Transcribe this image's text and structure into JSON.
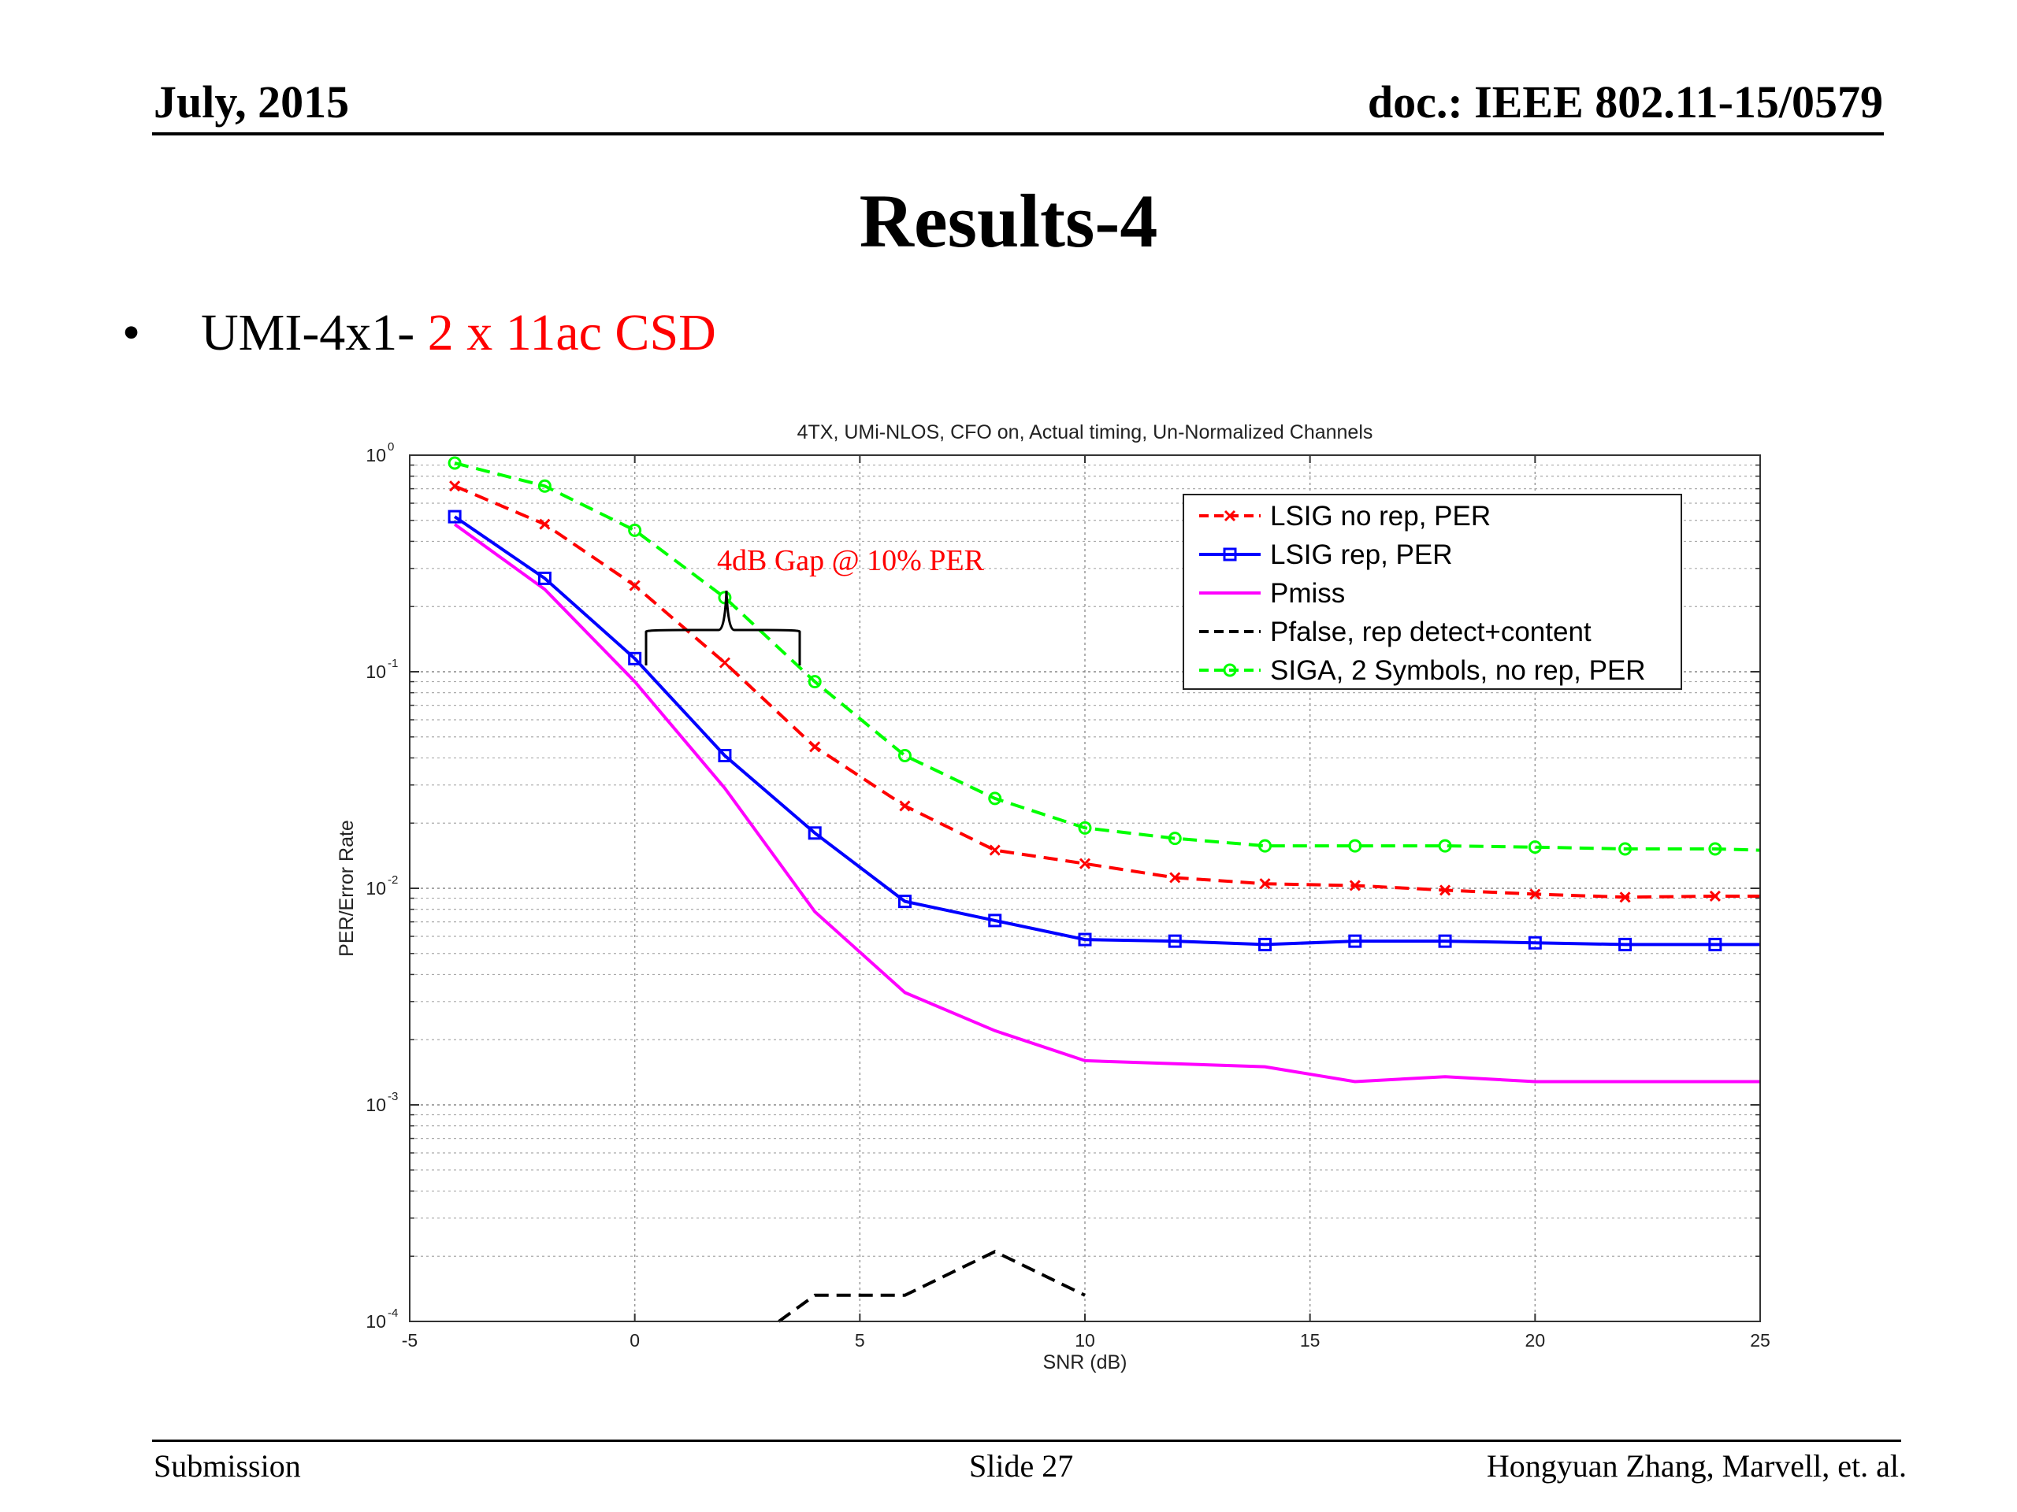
{
  "header": {
    "date": "July, 2015",
    "doc": "doc.: IEEE 802.11-15/0579"
  },
  "slide": {
    "title": "Results-4",
    "bullet": {
      "marker": "•",
      "text_black": "UMI-4x1- ",
      "text_red": "2 x 11ac CSD"
    }
  },
  "footer": {
    "left": "Submission",
    "center": "Slide 27",
    "right": "Hongyuan Zhang,  Marvell, et. al."
  },
  "chart_data": {
    "type": "line",
    "title": "4TX, UMi-NLOS, CFO on, Actual timing, Un-Normalized Channels",
    "xlabel": "SNR (dB)",
    "ylabel": "PER/Error Rate",
    "xlim": [
      -5,
      25
    ],
    "ylim": [
      0.0001,
      1
    ],
    "y_scale": "log",
    "grid": true,
    "legend_position": "top-right",
    "x_ticks": [
      -5,
      0,
      5,
      10,
      15,
      20,
      25
    ],
    "y_ticks": [
      {
        "base": "10",
        "exp": "0",
        "value": 1
      },
      {
        "base": "10",
        "exp": "-1",
        "value": 0.1
      },
      {
        "base": "10",
        "exp": "-2",
        "value": 0.01
      },
      {
        "base": "10",
        "exp": "-3",
        "value": 0.001
      },
      {
        "base": "10",
        "exp": "-4",
        "value": 0.0001
      }
    ],
    "series": [
      {
        "name": "LSIG no rep, PER",
        "color": "#ff0000",
        "dash": "dashed",
        "marker": "x",
        "x": [
          -4,
          -2,
          0,
          2,
          4,
          6,
          8,
          10,
          12,
          14,
          16,
          18,
          20,
          22,
          24,
          25
        ],
        "y": [
          0.72,
          0.48,
          0.25,
          0.11,
          0.045,
          0.024,
          0.015,
          0.013,
          0.0112,
          0.0105,
          0.0103,
          0.0098,
          0.0094,
          0.0091,
          0.0092,
          0.0092
        ]
      },
      {
        "name": "LSIG rep, PER",
        "color": "#0000ff",
        "dash": "solid",
        "marker": "square",
        "x": [
          -4,
          -2,
          0,
          2,
          4,
          6,
          8,
          10,
          12,
          14,
          16,
          18,
          20,
          22,
          24,
          25
        ],
        "y": [
          0.52,
          0.27,
          0.115,
          0.041,
          0.018,
          0.0087,
          0.0071,
          0.0058,
          0.0057,
          0.0055,
          0.0057,
          0.0057,
          0.0056,
          0.0055,
          0.0055,
          0.0055
        ]
      },
      {
        "name": "Pmiss",
        "color": "#ff00ff",
        "dash": "solid",
        "marker": "none",
        "x": [
          -4,
          -2,
          0,
          2,
          4,
          6,
          8,
          10,
          12,
          14,
          16,
          18,
          20,
          22,
          24,
          25
        ],
        "y": [
          0.48,
          0.24,
          0.09,
          0.029,
          0.0078,
          0.0033,
          0.0022,
          0.0016,
          0.00155,
          0.0015,
          0.00128,
          0.00135,
          0.00128,
          0.00128,
          0.00128,
          0.00128
        ]
      },
      {
        "name": "Pfalse, rep detect+content",
        "color": "#000000",
        "dash": "dashed",
        "marker": "none",
        "x": [
          3.2,
          4,
          6,
          8,
          10
        ],
        "y": [
          0.0001,
          0.000132,
          0.000132,
          0.00021,
          0.000132
        ]
      },
      {
        "name": "SIGA, 2 Symbols, no rep, PER",
        "color": "#00ff00",
        "dash": "dashed",
        "marker": "circle",
        "x": [
          -4,
          -2,
          0,
          2,
          4,
          6,
          8,
          10,
          12,
          14,
          16,
          18,
          20,
          22,
          24,
          25
        ],
        "y": [
          0.92,
          0.72,
          0.45,
          0.22,
          0.09,
          0.041,
          0.026,
          0.019,
          0.017,
          0.0157,
          0.0157,
          0.0157,
          0.0155,
          0.0152,
          0.0152,
          0.015
        ]
      }
    ],
    "annotations": [
      {
        "text": "4dB Gap  @ 10% PER",
        "color": "#ff0000"
      }
    ]
  }
}
